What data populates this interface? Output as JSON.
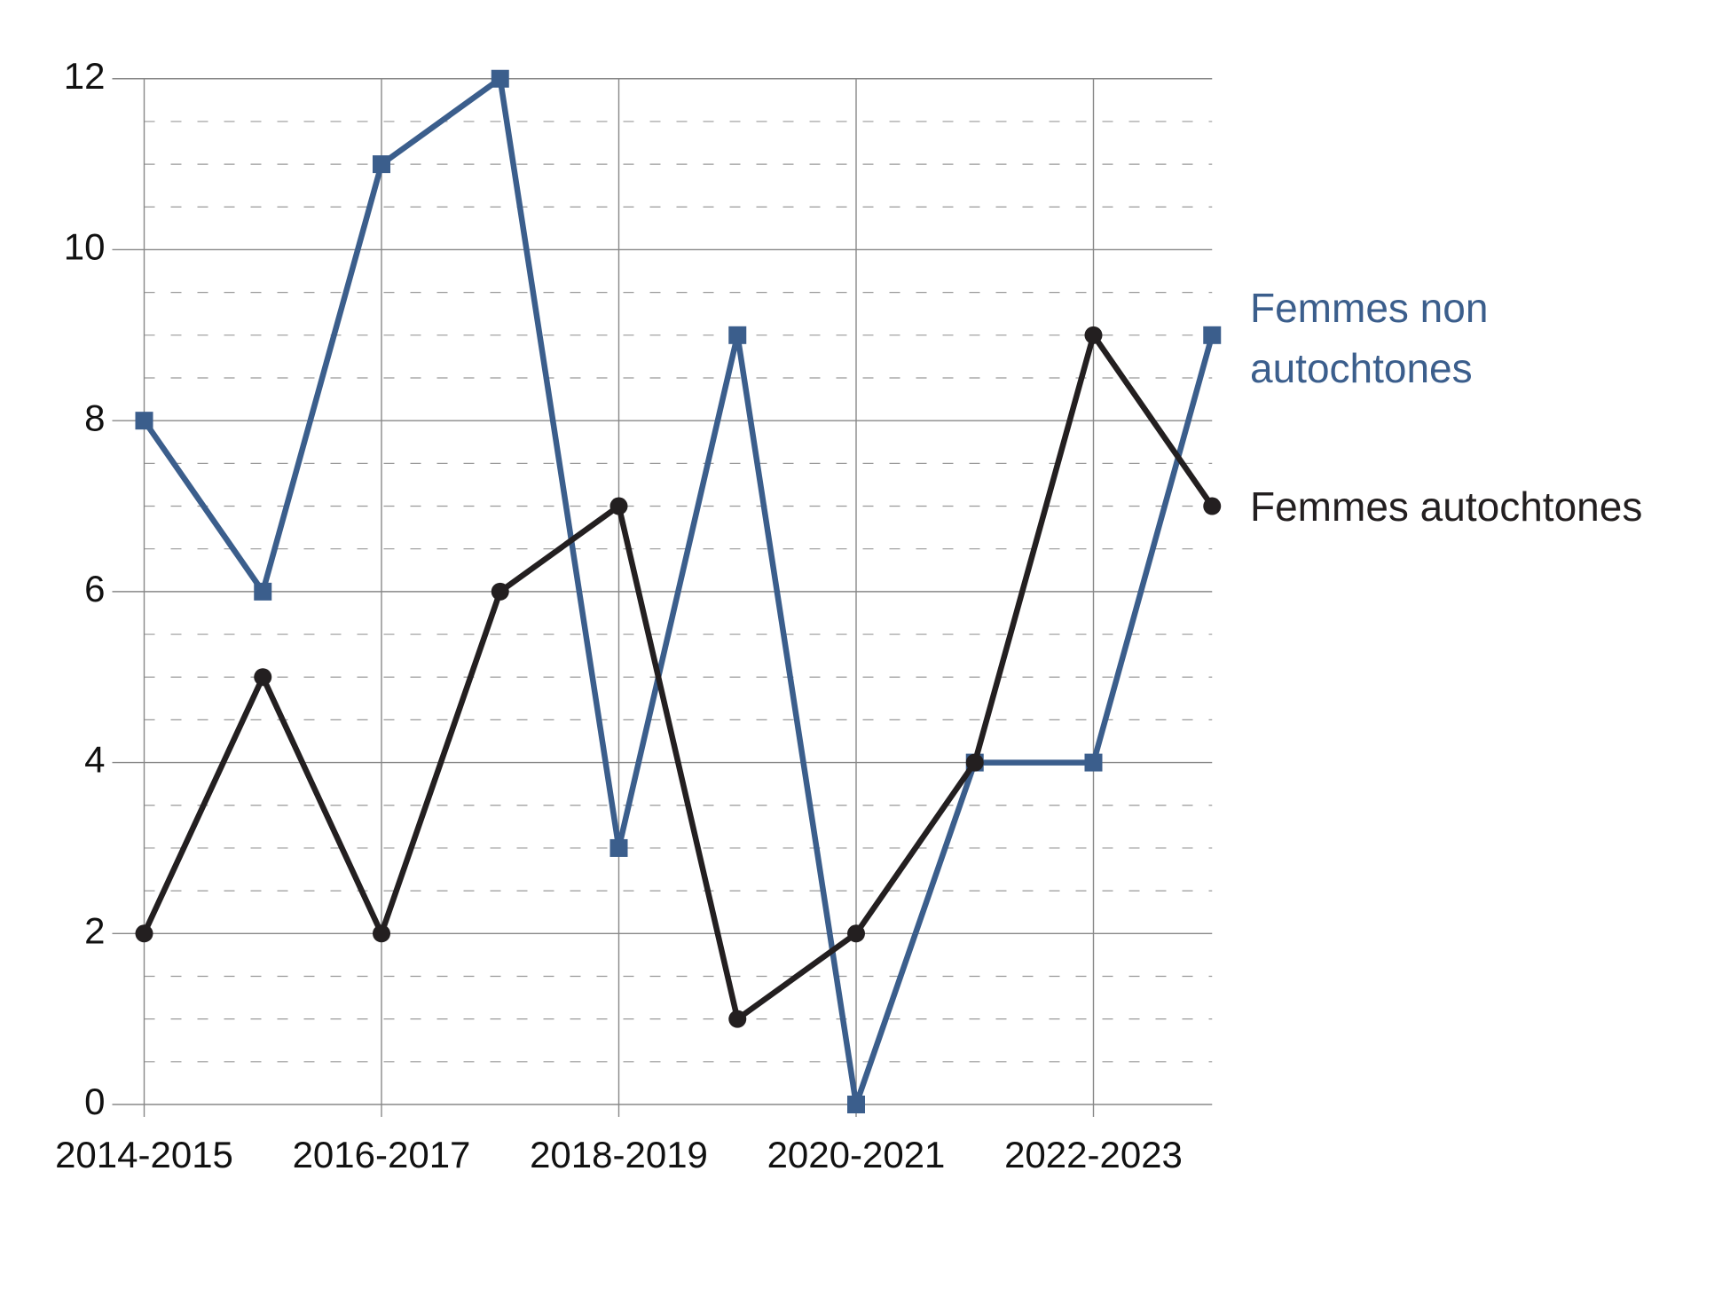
{
  "chart_data": {
    "type": "line",
    "categories": [
      "2014-2015",
      null,
      "2016-2017",
      null,
      "2018-2019",
      null,
      "2020-2021",
      null,
      "2022-2023",
      null
    ],
    "series": [
      {
        "name": "Femmes non autochtones",
        "color": "#3b5e8c",
        "marker": "square",
        "values": [
          8,
          6,
          11,
          12,
          3,
          9,
          0,
          4,
          4,
          9
        ]
      },
      {
        "name": "Femmes autochtones",
        "color": "#231f20",
        "marker": "circle",
        "values": [
          2,
          5,
          2,
          6,
          7,
          1,
          2,
          4,
          9,
          7
        ]
      }
    ],
    "ylim": [
      0,
      12
    ],
    "yticks": [
      0,
      2,
      4,
      6,
      8,
      10,
      12
    ],
    "yminorticks": [
      0.5,
      1,
      1.5,
      2.5,
      3,
      3.5,
      4.5,
      5,
      5.5,
      6.5,
      7,
      7.5,
      8.5,
      9,
      9.5,
      10.5,
      11,
      11.5
    ],
    "grid": true
  }
}
